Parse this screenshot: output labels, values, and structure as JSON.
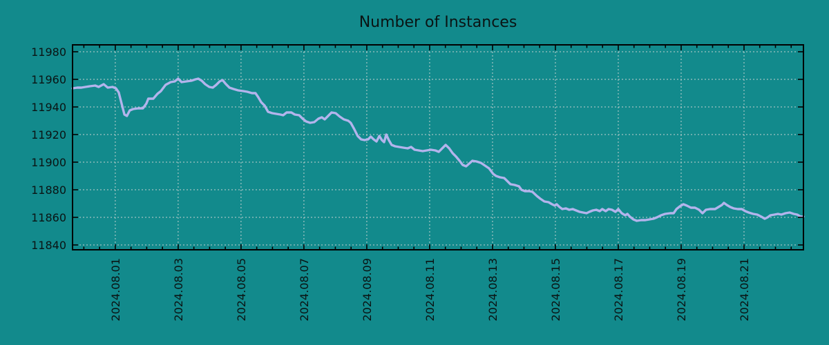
{
  "title": "Number of Instances",
  "colors": {
    "background": "#128a8c",
    "line": "#b3b4ec",
    "grid": "#c6d2d0",
    "axis": "#000000",
    "text": "#0a1414"
  },
  "chart_data": {
    "type": "line",
    "title": "Number of Instances",
    "xlabel": "",
    "ylabel": "",
    "legend_position": "none",
    "grid": true,
    "x_unit": "days since 2024-08-01 00:00",
    "xlim": [
      -1.36,
      21.89
    ],
    "ylim": [
      11836.5,
      11985
    ],
    "yticks": [
      11840,
      11860,
      11880,
      11900,
      11920,
      11940,
      11960,
      11980
    ],
    "xticks": [
      {
        "t": 0,
        "label": "2024.08.01"
      },
      {
        "t": 2,
        "label": "2024.08.03"
      },
      {
        "t": 4,
        "label": "2024.08.05"
      },
      {
        "t": 6,
        "label": "2024.08.07"
      },
      {
        "t": 8,
        "label": "2024.08.09"
      },
      {
        "t": 10,
        "label": "2024.08.11"
      },
      {
        "t": 12,
        "label": "2024.08.13"
      },
      {
        "t": 14,
        "label": "2024.08.15"
      },
      {
        "t": 16,
        "label": "2024.08.17"
      },
      {
        "t": 18,
        "label": "2024.08.19"
      },
      {
        "t": 20,
        "label": "2024.08.21"
      }
    ],
    "minor_xtick_step": 0.5,
    "series": [
      {
        "name": "instances",
        "points": [
          [
            -1.36,
            11953.5
          ],
          [
            -1.21,
            11954
          ],
          [
            -1.08,
            11954
          ],
          [
            -0.95,
            11954.5
          ],
          [
            -0.81,
            11955
          ],
          [
            -0.64,
            11955.5
          ],
          [
            -0.53,
            11954.5
          ],
          [
            -0.37,
            11956.5
          ],
          [
            -0.24,
            11954
          ],
          [
            -0.09,
            11954.5
          ],
          [
            0.02,
            11953.5
          ],
          [
            0.11,
            11950.5
          ],
          [
            0.2,
            11942.5
          ],
          [
            0.29,
            11934.5
          ],
          [
            0.37,
            11933.5
          ],
          [
            0.46,
            11937.5
          ],
          [
            0.57,
            11938.5
          ],
          [
            0.73,
            11939
          ],
          [
            0.88,
            11939
          ],
          [
            0.99,
            11942.5
          ],
          [
            1.05,
            11946
          ],
          [
            1.21,
            11946
          ],
          [
            1.34,
            11949.5
          ],
          [
            1.45,
            11951.5
          ],
          [
            1.6,
            11956
          ],
          [
            1.76,
            11958
          ],
          [
            1.89,
            11958.5
          ],
          [
            2.0,
            11960.5
          ],
          [
            2.11,
            11958
          ],
          [
            2.26,
            11958.5
          ],
          [
            2.42,
            11959
          ],
          [
            2.55,
            11960
          ],
          [
            2.64,
            11960.5
          ],
          [
            2.75,
            11959
          ],
          [
            2.86,
            11956.5
          ],
          [
            2.99,
            11954.5
          ],
          [
            3.1,
            11954
          ],
          [
            3.21,
            11956
          ],
          [
            3.32,
            11958.5
          ],
          [
            3.41,
            11959.5
          ],
          [
            3.52,
            11956.5
          ],
          [
            3.63,
            11954
          ],
          [
            3.76,
            11953
          ],
          [
            3.91,
            11952
          ],
          [
            4.07,
            11951.5
          ],
          [
            4.2,
            11951
          ],
          [
            4.35,
            11950
          ],
          [
            4.46,
            11950
          ],
          [
            4.55,
            11947
          ],
          [
            4.64,
            11943.5
          ],
          [
            4.75,
            11941
          ],
          [
            4.86,
            11936.5
          ],
          [
            4.99,
            11935.5
          ],
          [
            5.12,
            11935
          ],
          [
            5.25,
            11934.5
          ],
          [
            5.34,
            11934
          ],
          [
            5.45,
            11936
          ],
          [
            5.6,
            11936
          ],
          [
            5.71,
            11934.5
          ],
          [
            5.85,
            11934
          ],
          [
            5.96,
            11931.5
          ],
          [
            6.07,
            11929.5
          ],
          [
            6.2,
            11928.5
          ],
          [
            6.33,
            11929
          ],
          [
            6.46,
            11931.5
          ],
          [
            6.57,
            11932.5
          ],
          [
            6.66,
            11931
          ],
          [
            6.77,
            11933.5
          ],
          [
            6.88,
            11936
          ],
          [
            7.01,
            11935.5
          ],
          [
            7.14,
            11933
          ],
          [
            7.27,
            11931
          ],
          [
            7.41,
            11930
          ],
          [
            7.49,
            11928.5
          ],
          [
            7.6,
            11924
          ],
          [
            7.71,
            11919
          ],
          [
            7.82,
            11916.5
          ],
          [
            7.93,
            11916
          ],
          [
            8.04,
            11916.5
          ],
          [
            8.13,
            11918.5
          ],
          [
            8.22,
            11916.5
          ],
          [
            8.31,
            11915
          ],
          [
            8.4,
            11919
          ],
          [
            8.48,
            11916
          ],
          [
            8.55,
            11914.5
          ],
          [
            8.62,
            11920
          ],
          [
            8.7,
            11916
          ],
          [
            8.79,
            11912.5
          ],
          [
            8.9,
            11911.5
          ],
          [
            9.03,
            11911
          ],
          [
            9.16,
            11910.5
          ],
          [
            9.3,
            11910
          ],
          [
            9.41,
            11911
          ],
          [
            9.52,
            11909
          ],
          [
            9.65,
            11908.5
          ],
          [
            9.78,
            11908
          ],
          [
            9.91,
            11908.5
          ],
          [
            10.04,
            11909
          ],
          [
            10.18,
            11908.5
          ],
          [
            10.29,
            11907.5
          ],
          [
            10.4,
            11910
          ],
          [
            10.51,
            11912.5
          ],
          [
            10.62,
            11910
          ],
          [
            10.73,
            11906.5
          ],
          [
            10.84,
            11904
          ],
          [
            10.95,
            11901
          ],
          [
            11.05,
            11898
          ],
          [
            11.16,
            11897
          ],
          [
            11.36,
            11901
          ],
          [
            11.49,
            11900.5
          ],
          [
            11.63,
            11899.5
          ],
          [
            11.76,
            11897.5
          ],
          [
            11.89,
            11895.5
          ],
          [
            12.02,
            11891.5
          ],
          [
            12.11,
            11890
          ],
          [
            12.24,
            11889
          ],
          [
            12.37,
            11888.5
          ],
          [
            12.46,
            11886.5
          ],
          [
            12.57,
            11884
          ],
          [
            12.7,
            11883.5
          ],
          [
            12.84,
            11882.5
          ],
          [
            12.92,
            11880
          ],
          [
            13.03,
            11879
          ],
          [
            13.16,
            11879
          ],
          [
            13.27,
            11878.5
          ],
          [
            13.41,
            11875.5
          ],
          [
            13.52,
            11873.5
          ],
          [
            13.65,
            11871.5
          ],
          [
            13.78,
            11871
          ],
          [
            13.89,
            11869.5
          ],
          [
            13.98,
            11868.5
          ],
          [
            14.04,
            11869.5
          ],
          [
            14.13,
            11867.5
          ],
          [
            14.22,
            11866
          ],
          [
            14.33,
            11866.5
          ],
          [
            14.44,
            11865.5
          ],
          [
            14.55,
            11866
          ],
          [
            14.66,
            11865
          ],
          [
            14.77,
            11864
          ],
          [
            14.88,
            11863.5
          ],
          [
            14.99,
            11863
          ],
          [
            15.08,
            11864
          ],
          [
            15.19,
            11865
          ],
          [
            15.3,
            11865.5
          ],
          [
            15.41,
            11864.5
          ],
          [
            15.49,
            11866
          ],
          [
            15.6,
            11864.5
          ],
          [
            15.69,
            11866
          ],
          [
            15.8,
            11865.5
          ],
          [
            15.91,
            11864
          ],
          [
            16.0,
            11866
          ],
          [
            16.11,
            11863
          ],
          [
            16.22,
            11861.5
          ],
          [
            16.29,
            11862.5
          ],
          [
            16.37,
            11860.5
          ],
          [
            16.48,
            11858.5
          ],
          [
            16.59,
            11857.5
          ],
          [
            16.73,
            11858
          ],
          [
            16.86,
            11858
          ],
          [
            16.99,
            11858.5
          ],
          [
            17.12,
            11859
          ],
          [
            17.23,
            11860
          ],
          [
            17.36,
            11861.5
          ],
          [
            17.49,
            11862.5
          ],
          [
            17.65,
            11863
          ],
          [
            17.76,
            11863
          ],
          [
            17.85,
            11866
          ],
          [
            17.96,
            11868
          ],
          [
            18.07,
            11869.5
          ],
          [
            18.18,
            11868.5
          ],
          [
            18.31,
            11867
          ],
          [
            18.44,
            11867
          ],
          [
            18.57,
            11865.5
          ],
          [
            18.68,
            11863
          ],
          [
            18.79,
            11865.5
          ],
          [
            18.92,
            11866
          ],
          [
            19.08,
            11866
          ],
          [
            19.19,
            11867.5
          ],
          [
            19.3,
            11869
          ],
          [
            19.36,
            11870.5
          ],
          [
            19.45,
            11869
          ],
          [
            19.56,
            11867.5
          ],
          [
            19.67,
            11866.5
          ],
          [
            19.8,
            11866
          ],
          [
            19.93,
            11866
          ],
          [
            20.04,
            11864.5
          ],
          [
            20.15,
            11863.5
          ],
          [
            20.29,
            11862.5
          ],
          [
            20.42,
            11862
          ],
          [
            20.55,
            11860.5
          ],
          [
            20.66,
            11859
          ],
          [
            20.75,
            11860
          ],
          [
            20.84,
            11861.5
          ],
          [
            20.97,
            11862
          ],
          [
            21.08,
            11862.5
          ],
          [
            21.19,
            11862
          ],
          [
            21.32,
            11863
          ],
          [
            21.45,
            11863.5
          ],
          [
            21.58,
            11862.5
          ],
          [
            21.69,
            11862
          ],
          [
            21.8,
            11860.5
          ],
          [
            21.89,
            11860.5
          ]
        ]
      }
    ]
  }
}
